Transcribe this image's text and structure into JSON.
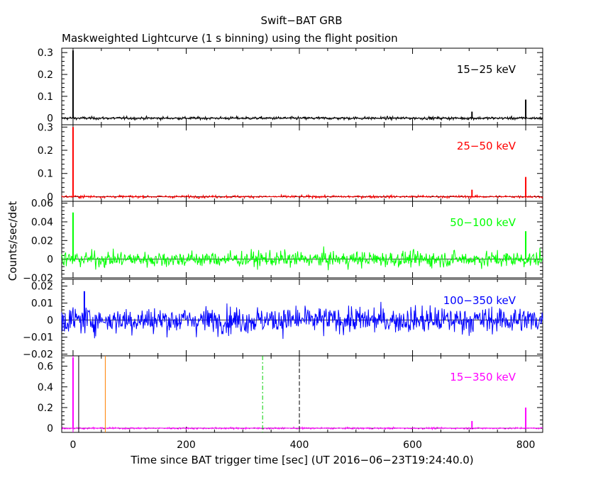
{
  "chart_data": {
    "type": "line",
    "title": "Swift−BAT GRB",
    "subtitle": "Maskweighted Lightcurve (1 s binning) using the flight position",
    "xlabel": "Time since BAT trigger time [sec] (UT 2016−06−23T19:24:40.0)",
    "ylabel": "Counts/sec/det",
    "xlim": [
      -20,
      830
    ],
    "x_ticks": [
      "0",
      "200",
      "400",
      "600",
      "800"
    ],
    "x_tick_values": [
      0,
      200,
      400,
      600,
      800
    ],
    "panels": [
      {
        "name": "15−25 keV",
        "color": "#000000",
        "ylim": [
          -0.03,
          0.32
        ],
        "y_ticks": [
          "0",
          "0.1",
          "0.2",
          "0.3"
        ],
        "y_tick_values": [
          0,
          0.1,
          0.2,
          0.3
        ],
        "noise_std": 0.005,
        "spikes": [
          {
            "x": 0,
            "y": 0.31
          },
          {
            "x": 705,
            "y": 0.03
          },
          {
            "x": 800,
            "y": 0.085
          }
        ]
      },
      {
        "name": "25−50 keV",
        "color": "#ff0000",
        "ylim": [
          -0.02,
          0.31
        ],
        "y_ticks": [
          "0",
          "0.1",
          "0.2",
          "0.3"
        ],
        "y_tick_values": [
          0,
          0.1,
          0.2,
          0.3
        ],
        "noise_std": 0.004,
        "spikes": [
          {
            "x": 0,
            "y": 0.3
          },
          {
            "x": 705,
            "y": 0.03
          },
          {
            "x": 800,
            "y": 0.085
          }
        ]
      },
      {
        "name": "50−100 keV",
        "color": "#00ff00",
        "ylim": [
          -0.02,
          0.062
        ],
        "y_ticks": [
          "−0.02",
          "0",
          "0.02",
          "0.04",
          "0.06"
        ],
        "y_tick_values": [
          -0.02,
          0,
          0.02,
          0.04,
          0.06
        ],
        "noise_std": 0.006,
        "spikes": [
          {
            "x": 0,
            "y": 0.05
          },
          {
            "x": 800,
            "y": 0.03
          }
        ]
      },
      {
        "name": "100−350 keV",
        "color": "#0000ff",
        "ylim": [
          -0.021,
          0.024
        ],
        "y_ticks": [
          "−0.02",
          "−0.01",
          "0",
          "0.01",
          "0.02"
        ],
        "y_tick_values": [
          -0.02,
          -0.01,
          0,
          0.01,
          0.02
        ],
        "noise_std": 0.0055,
        "spikes": [
          {
            "x": 20,
            "y": 0.017
          }
        ]
      },
      {
        "name": "15−350 keV",
        "color": "#ff00ff",
        "ylim": [
          -0.04,
          0.7
        ],
        "y_ticks": [
          "0",
          "0.2",
          "0.4",
          "0.6"
        ],
        "y_tick_values": [
          0,
          0.2,
          0.4,
          0.6
        ],
        "noise_std": 0.006,
        "spikes": [
          {
            "x": 0,
            "y": 0.68
          },
          {
            "x": 705,
            "y": 0.07
          },
          {
            "x": 800,
            "y": 0.2
          }
        ],
        "markers": [
          {
            "x": 0,
            "color": "#ff00ff",
            "style": "solid"
          },
          {
            "x": 10,
            "color": "#000000",
            "style": "solid"
          },
          {
            "x": 57,
            "color": "#ff8000",
            "style": "solid"
          },
          {
            "x": 335,
            "color": "#00cc00",
            "style": "dashdot"
          },
          {
            "x": 400,
            "color": "#000000",
            "style": "dashed"
          }
        ]
      }
    ]
  }
}
